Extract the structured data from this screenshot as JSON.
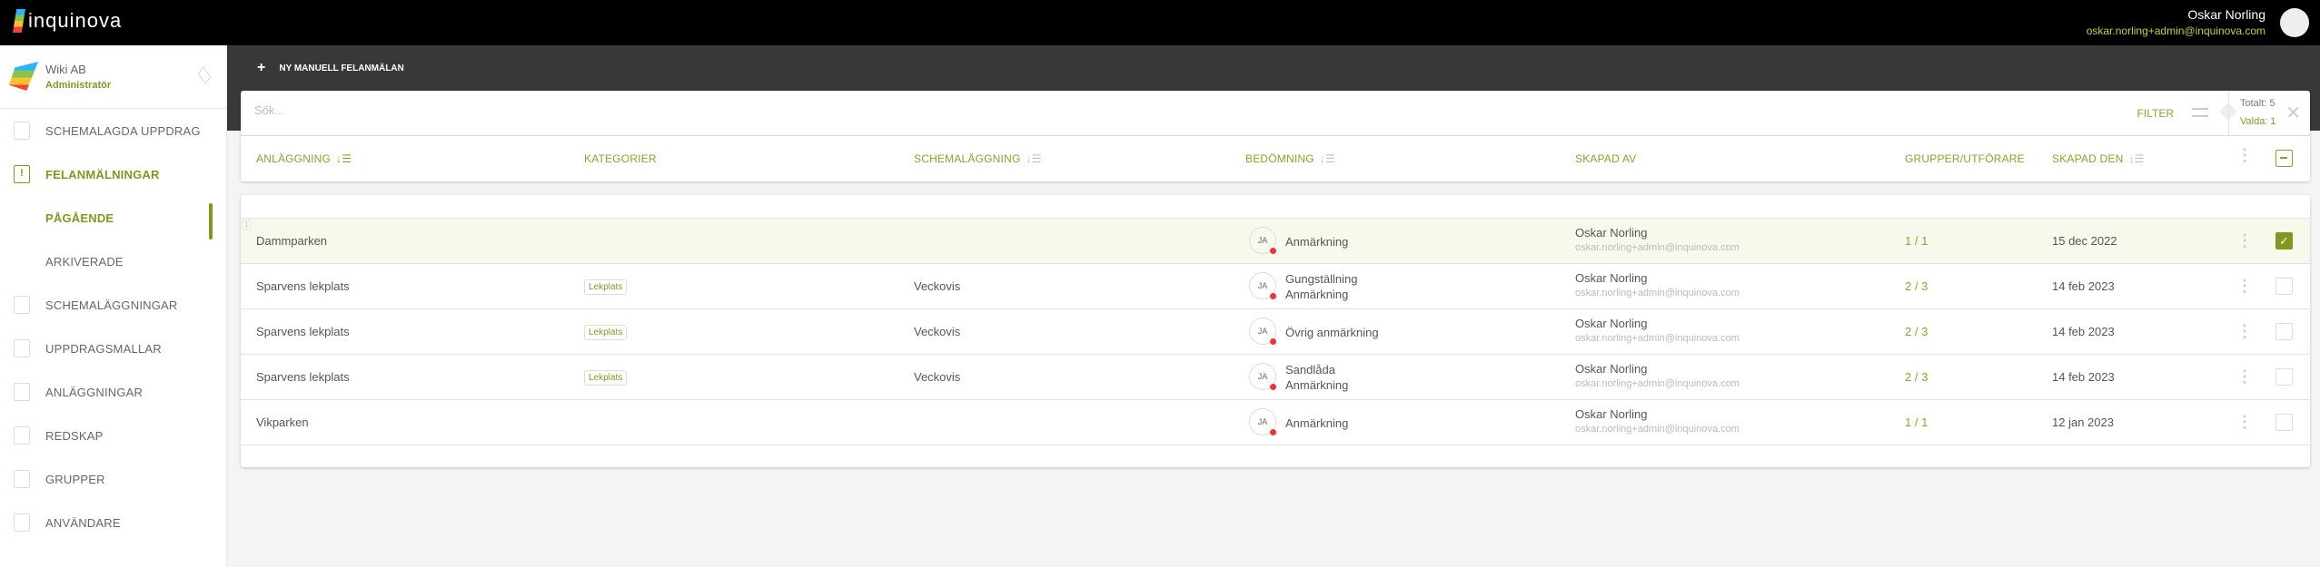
{
  "app": {
    "brand": "inquinova"
  },
  "user": {
    "name": "Oskar Norling",
    "email": "oskar.norling+admin@inquinova.com"
  },
  "org": {
    "name": "Wiki AB",
    "role": "Administratör"
  },
  "sidebar": {
    "items": [
      {
        "label": "SCHEMALAGDA UPPDRAG",
        "icon": "clipboard-list-icon"
      },
      {
        "label": "FELANMÄLNINGAR",
        "icon": "clipboard-alert-icon",
        "active": true
      },
      {
        "label": "PÅGÅENDE",
        "sub": true,
        "active": true
      },
      {
        "label": "ARKIVERADE",
        "sub": true
      },
      {
        "label": "SCHEMALÄGGNINGAR",
        "icon": "calendar-icon"
      },
      {
        "label": "UPPDRAGSMALLAR",
        "icon": "map-icon"
      },
      {
        "label": "ANLÄGGNINGAR",
        "icon": "building-icon"
      },
      {
        "label": "REDSKAP",
        "icon": "tools-icon"
      },
      {
        "label": "GRUPPER",
        "icon": "group-icon"
      },
      {
        "label": "ANVÄNDARE",
        "icon": "user-icon"
      }
    ]
  },
  "toolbar": {
    "new_label": "NY MANUELL FELANMÄLAN"
  },
  "search": {
    "placeholder": "Sök...",
    "value": ""
  },
  "filter": {
    "label": "FILTER"
  },
  "counts": {
    "total": "Totalt: 5",
    "selected": "Valda: 1"
  },
  "columns": [
    "ANLÄGGNING",
    "KATEGORIER",
    "SCHEMALÄGGNING",
    "BEDÖMNING",
    "SKAPAD AV",
    "GRUPPER/UTFÖRARE",
    "SKAPAD DEN"
  ],
  "rows": [
    {
      "facility": "Dammparken",
      "category": "",
      "schedule": "",
      "initials": "JA",
      "assessment": [
        "Anmärkning"
      ],
      "creator": "Oskar Norling",
      "creator_email": "oskar.norling+admin@inquinova.com",
      "groups": "1 / 1",
      "created": "15 dec 2022",
      "selected": true
    },
    {
      "facility": "Sparvens lekplats",
      "category": "Lekplats",
      "schedule": "Veckovis",
      "initials": "JA",
      "assessment": [
        "Gungställning",
        "Anmärkning"
      ],
      "creator": "Oskar Norling",
      "creator_email": "oskar.norling+admin@inquinova.com",
      "groups": "2 / 3",
      "created": "14 feb 2023",
      "selected": false
    },
    {
      "facility": "Sparvens lekplats",
      "category": "Lekplats",
      "schedule": "Veckovis",
      "initials": "JA",
      "assessment": [
        "Övrig anmärkning"
      ],
      "creator": "Oskar Norling",
      "creator_email": "oskar.norling+admin@inquinova.com",
      "groups": "2 / 3",
      "created": "14 feb 2023",
      "selected": false
    },
    {
      "facility": "Sparvens lekplats",
      "category": "Lekplats",
      "schedule": "Veckovis",
      "initials": "JA",
      "assessment": [
        "Sandlåda",
        "Anmärkning"
      ],
      "creator": "Oskar Norling",
      "creator_email": "oskar.norling+admin@inquinova.com",
      "groups": "2 / 3",
      "created": "14 feb 2023",
      "selected": false
    },
    {
      "facility": "Vikparken",
      "category": "",
      "schedule": "",
      "initials": "JA",
      "assessment": [
        "Anmärkning"
      ],
      "creator": "Oskar Norling",
      "creator_email": "oskar.norling+admin@inquinova.com",
      "groups": "1 / 1",
      "created": "12 jan 2023",
      "selected": false
    }
  ],
  "row_number": "1",
  "colors": {
    "accent": "#7d9a1f",
    "email_accent": "#c0d62b",
    "selected_row": "#f6f9eb",
    "status_dot": "#e53935"
  }
}
